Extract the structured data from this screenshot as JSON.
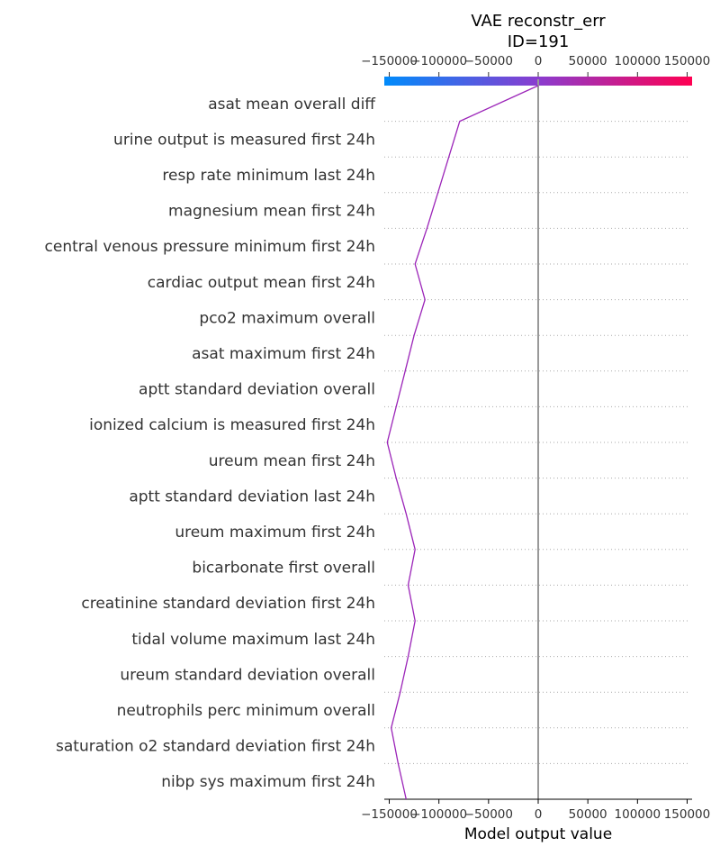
{
  "chart_data": {
    "type": "line",
    "title": "VAE reconstr_err",
    "subtitle": "ID=191",
    "xlabel": "Model output value",
    "xlim": [
      -155000,
      155000
    ],
    "xticks": [
      "−150000",
      "−100000",
      "−50000",
      "0",
      "50000",
      "100000",
      "150000"
    ],
    "xtick_values": [
      -150000,
      -100000,
      -50000,
      0,
      50000,
      100000,
      150000
    ],
    "base_value": 0,
    "colorbar": {
      "colors": [
        "#008bfb",
        "#8a3ccf",
        "#ff0052"
      ],
      "range": [
        -155000,
        155000
      ]
    },
    "line_color": "#9b24b8",
    "features": [
      "asat  mean  overall  diff",
      "urine output  is measured  first 24h",
      "resp rate  minimum  last 24h",
      "magnesium  mean  first 24h",
      "central venous pressure  minimum  first 24h",
      "cardiac output  mean  first 24h",
      "pco2  maximum  overall",
      "asat  maximum  first 24h",
      "aptt  standard deviation  overall",
      "ionized calcium  is measured  first 24h",
      "ureum  mean  first 24h",
      "aptt  standard deviation  last 24h",
      "ureum  maximum  first 24h",
      "bicarbonate  first  overall",
      "creatinine  standard deviation  first 24h",
      "tidal volume  maximum  last 24h",
      "ureum  standard deviation  overall",
      "neutrophils perc  minimum  overall",
      "saturation o2  standard deviation  first 24h",
      "nibp sys  maximum  first 24h"
    ],
    "path_values": [
      0,
      -79000,
      -90000,
      -101000,
      -112000,
      -124000,
      -114000,
      -125000,
      -134000,
      -143000,
      -152000,
      -143000,
      -133000,
      -124000,
      -131000,
      -124000,
      -131000,
      -139000,
      -148000,
      -141000,
      -133000
    ]
  }
}
